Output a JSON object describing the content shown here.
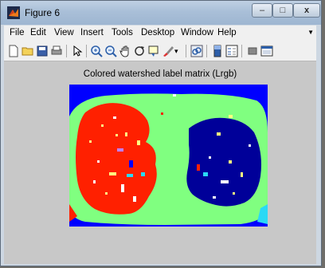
{
  "window": {
    "title": "Figure 6"
  },
  "menu": {
    "items": [
      "File",
      "Edit",
      "View",
      "Insert",
      "Tools",
      "Desktop",
      "Window",
      "Help"
    ]
  },
  "toolbar": {
    "icons": [
      "new-file-icon",
      "open-folder-icon",
      "save-icon",
      "print-icon",
      "pointer-icon",
      "zoom-in-icon",
      "zoom-out-icon",
      "pan-icon",
      "rotate-3d-icon",
      "data-cursor-icon",
      "brush-icon",
      "link-icon",
      "colorbar-icon",
      "legend-icon",
      "hide-plot-tools-icon",
      "show-plot-tools-icon"
    ]
  },
  "figure": {
    "title": "Colored watershed label matrix (Lrgb)",
    "colors": {
      "background_region": "#80ff80",
      "outer_region": "#0000ff",
      "left_lung": "#ff2000",
      "right_lung": "#000099",
      "accent_spots": "#ffff80"
    }
  }
}
